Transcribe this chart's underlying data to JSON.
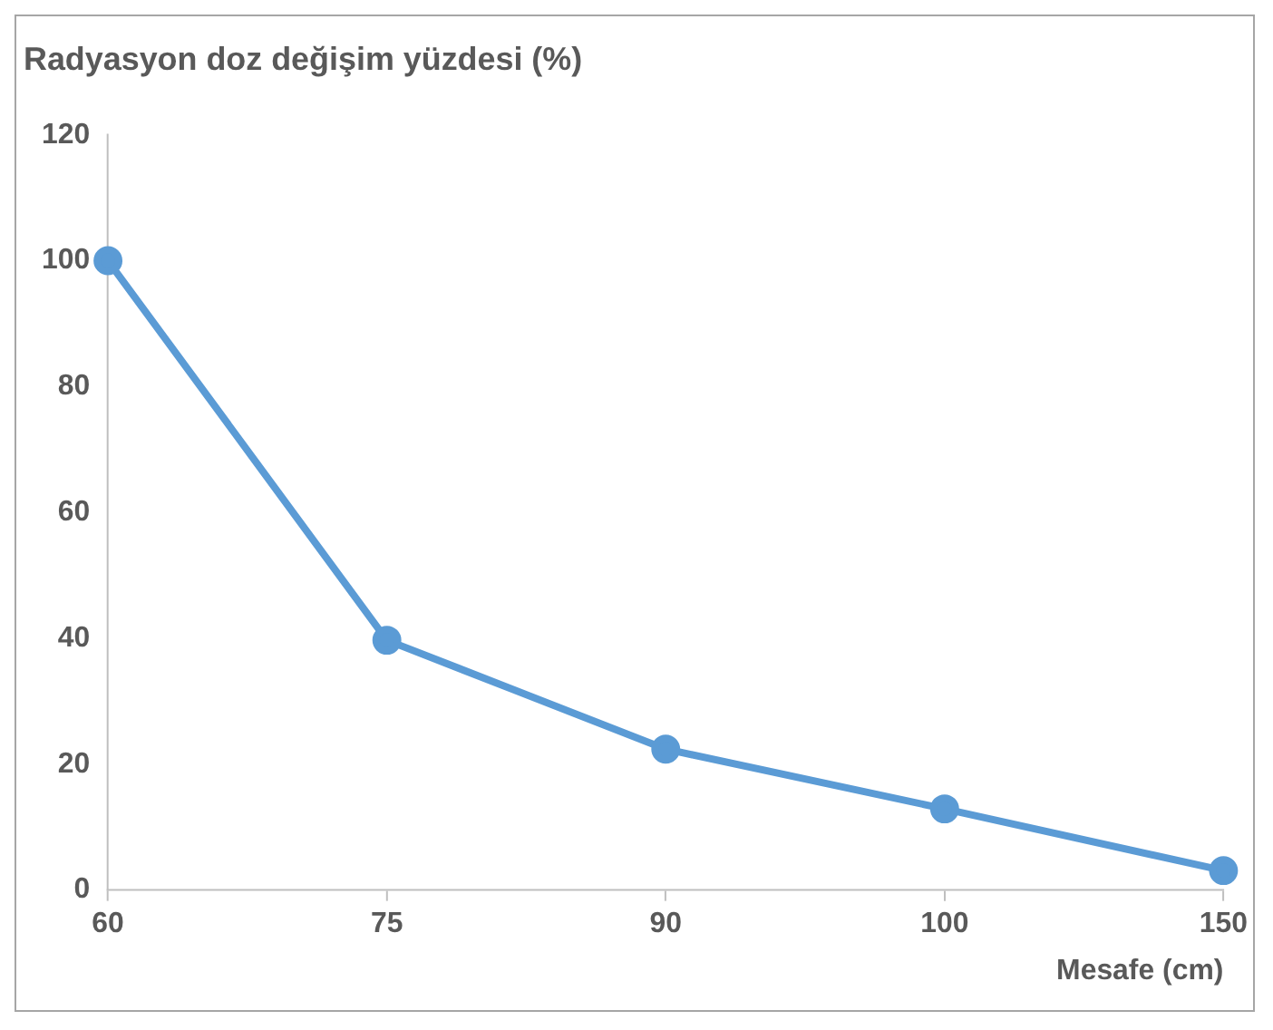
{
  "chart_data": {
    "type": "line",
    "title": "Radyasyon doz değişim yüzdesi (%)",
    "xlabel": "Mesafe (cm)",
    "categories": [
      "60",
      "75",
      "90",
      "100",
      "150"
    ],
    "series": [
      {
        "color": "#5b9bd5",
        "values": [
          100,
          39.7,
          22.4,
          12.9,
          3.1
        ]
      }
    ],
    "ylim": [
      0,
      120
    ],
    "yticks": [
      0,
      20,
      40,
      60,
      80,
      100,
      120
    ],
    "grid": false,
    "legend": false,
    "marker": "circle",
    "line_style": "solid"
  }
}
